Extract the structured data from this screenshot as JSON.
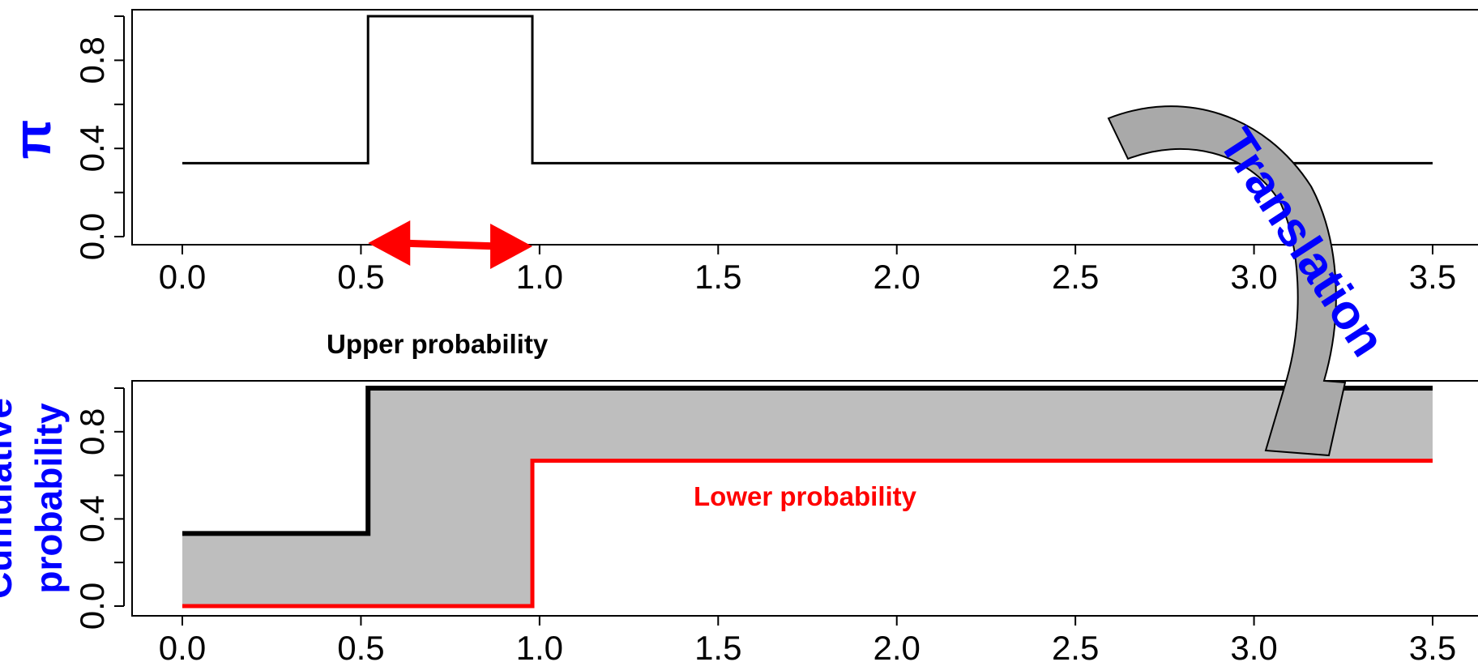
{
  "chart_data": [
    {
      "type": "line",
      "ylabel": "π",
      "xlim": [
        0,
        3.5
      ],
      "ylim": [
        0,
        1
      ],
      "x_ticks": [
        "0.0",
        "0.5",
        "1.0",
        "1.5",
        "2.0",
        "2.5",
        "3.0",
        "3.5"
      ],
      "y_ticks": [
        "0.0",
        "0.4",
        "0.8"
      ],
      "series": [
        {
          "color": "#000000",
          "x": [
            0.0,
            0.52,
            0.52,
            0.98,
            0.98,
            3.5
          ],
          "y": [
            0.333,
            0.333,
            1.0,
            1.0,
            0.333,
            0.333
          ]
        }
      ],
      "annotations": [
        {
          "type": "double-arrow",
          "color": "#ff0000",
          "x_from": 0.52,
          "x_to": 0.98,
          "y": 0.0
        }
      ]
    },
    {
      "type": "area",
      "ylabel": "Cumulative probability",
      "xlim": [
        0,
        3.5
      ],
      "ylim": [
        0,
        1
      ],
      "x_ticks": [
        "0.0",
        "0.5",
        "1.0",
        "1.5",
        "2.0",
        "2.5",
        "3.0",
        "3.5"
      ],
      "y_ticks": [
        "0.0",
        "0.4",
        "0.8"
      ],
      "fill_color": "#bebebe",
      "series": [
        {
          "name": "Upper probability",
          "color": "#000000",
          "x": [
            0.0,
            0.52,
            0.52,
            3.5
          ],
          "y": [
            0.333,
            0.333,
            1.0,
            1.0
          ]
        },
        {
          "name": "Lower probability",
          "color": "#ff0000",
          "x": [
            0.0,
            0.98,
            0.98,
            3.5
          ],
          "y": [
            0.0,
            0.0,
            0.667,
            0.667
          ]
        }
      ]
    }
  ],
  "labels": {
    "top_ylabel": "π",
    "bottom_ylabel_line1": "Cumulative",
    "bottom_ylabel_line2": "probability",
    "upper_probability": "Upper probability",
    "lower_probability": "Lower probability",
    "translation": "Translation"
  },
  "colors": {
    "axis_label": "#0000ff",
    "lower": "#ff0000",
    "upper": "#000000",
    "band": "#bebebe",
    "arrow_fill": "#a9a9a9"
  }
}
